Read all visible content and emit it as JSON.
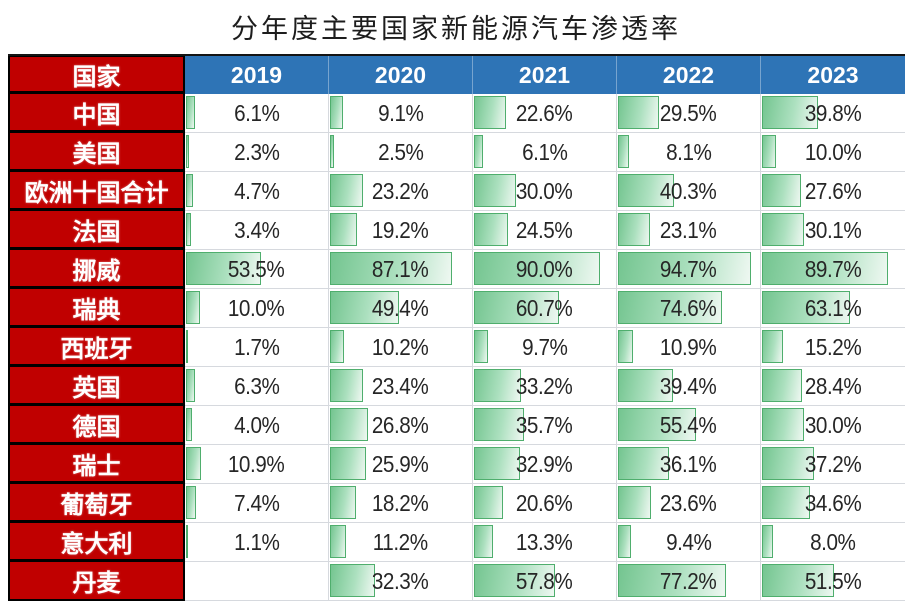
{
  "title": "分年度主要国家新能源汽车渗透率",
  "chart_data": {
    "type": "table",
    "title": "分年度主要国家新能源汽车渗透率",
    "corner_header": "国家",
    "columns": [
      "2019",
      "2020",
      "2021",
      "2022",
      "2023"
    ],
    "unit": "%",
    "bar_scale_max": 100,
    "value_format": "one_decimal_percent",
    "rows": [
      {
        "country": "中国",
        "values": [
          6.1,
          9.1,
          22.6,
          29.5,
          39.8
        ]
      },
      {
        "country": "美国",
        "values": [
          2.3,
          2.5,
          6.1,
          8.1,
          10.0
        ]
      },
      {
        "country": "欧洲十国合计",
        "values": [
          4.7,
          23.2,
          30.0,
          40.3,
          27.6
        ]
      },
      {
        "country": "法国",
        "values": [
          3.4,
          19.2,
          24.5,
          23.1,
          30.1
        ]
      },
      {
        "country": "挪威",
        "values": [
          53.5,
          87.1,
          90.0,
          94.7,
          89.7
        ]
      },
      {
        "country": "瑞典",
        "values": [
          10.0,
          49.4,
          60.7,
          74.6,
          63.1
        ]
      },
      {
        "country": "西班牙",
        "values": [
          1.7,
          10.2,
          9.7,
          10.9,
          15.2
        ]
      },
      {
        "country": "英国",
        "values": [
          6.3,
          23.4,
          33.2,
          39.4,
          28.4
        ]
      },
      {
        "country": "德国",
        "values": [
          4.0,
          26.8,
          35.7,
          55.4,
          30.0
        ]
      },
      {
        "country": "瑞士",
        "values": [
          10.9,
          25.9,
          32.9,
          36.1,
          37.2
        ]
      },
      {
        "country": "葡萄牙",
        "values": [
          7.4,
          18.2,
          20.6,
          23.6,
          34.6
        ]
      },
      {
        "country": "意大利",
        "values": [
          1.1,
          11.2,
          13.3,
          9.4,
          8.0
        ]
      },
      {
        "country": "丹麦",
        "values": [
          null,
          32.3,
          57.8,
          77.2,
          51.5
        ]
      }
    ]
  },
  "colors": {
    "country_bg": "#C00000",
    "year_header_bg": "#2E74B6",
    "bar_border": "#4FAE6D",
    "bar_fill_start": "#74C590",
    "bar_fill_end": "#EFF8F2",
    "grid_line": "#D6D9DE",
    "value_text": "#262626"
  }
}
